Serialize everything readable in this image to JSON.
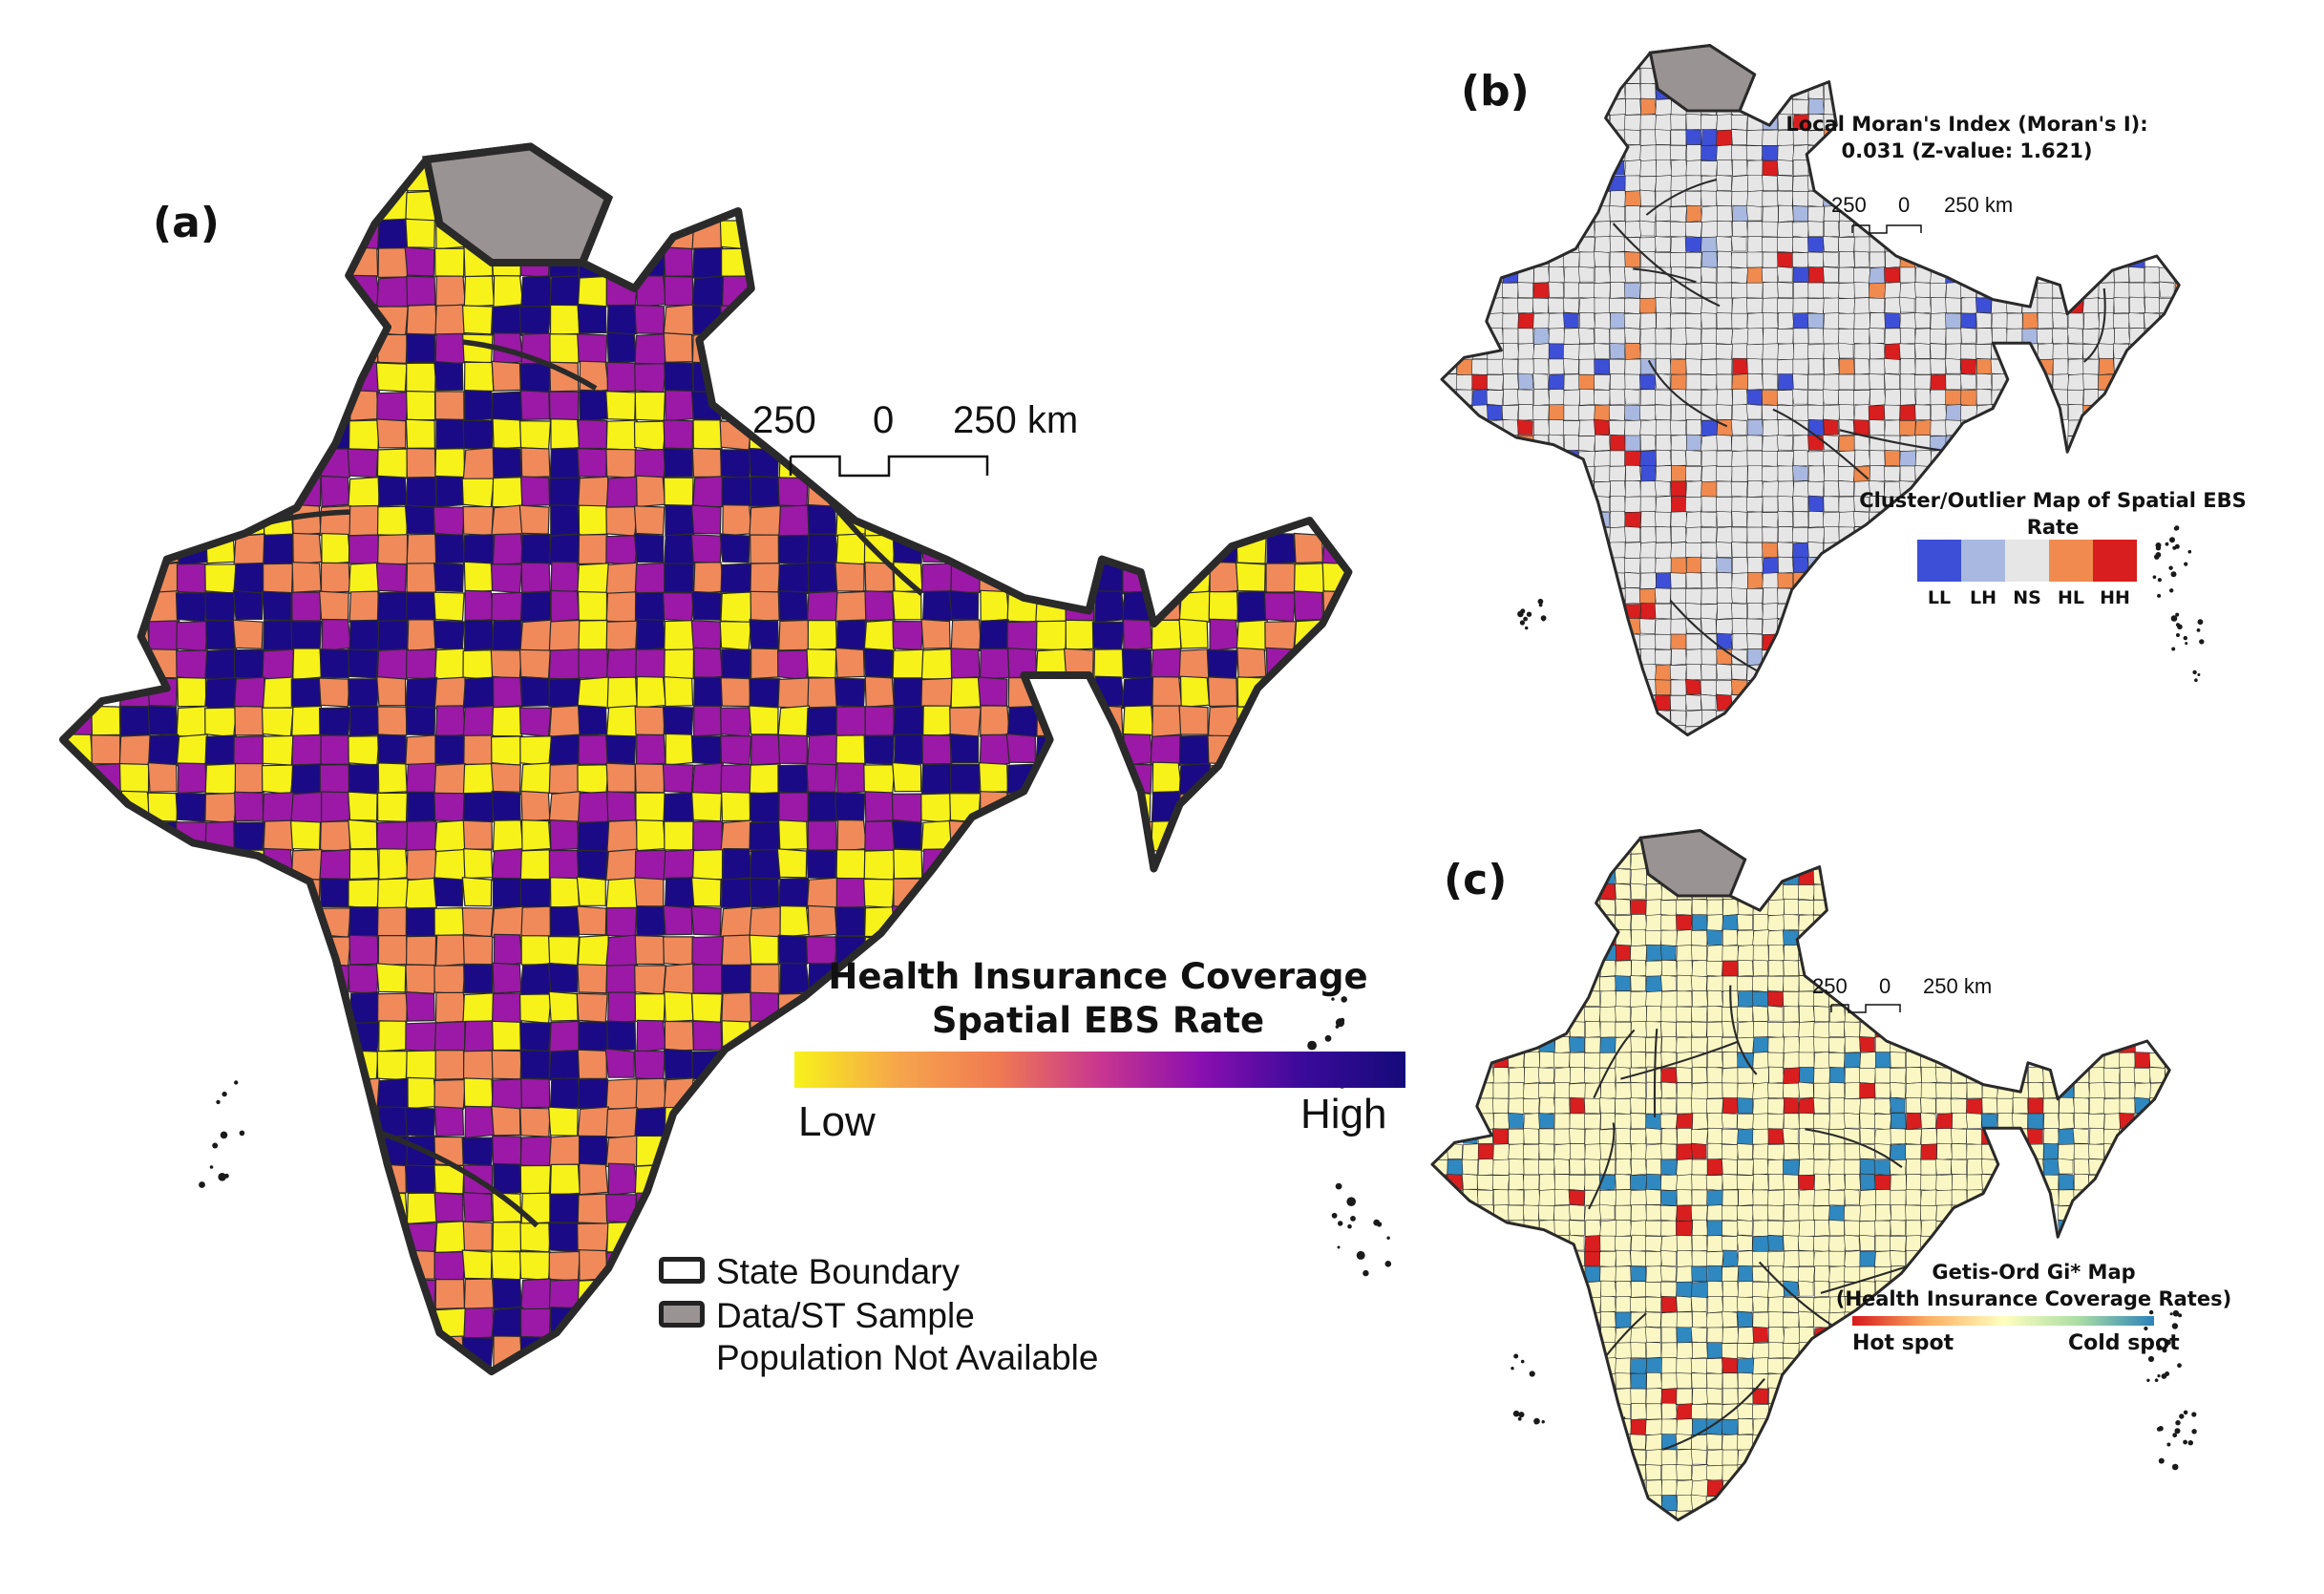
{
  "panels": {
    "a": {
      "label": "(a)",
      "scale": {
        "left": "250",
        "mid": "0",
        "right": "250 km"
      },
      "legend": {
        "title_line1": "Health Insurance Coverage",
        "title_line2": "Spatial EBS Rate",
        "low": "Low",
        "high": "High",
        "gradient_colors": [
          "#f7f21a",
          "#f6a64b",
          "#f07a52",
          "#c8368f",
          "#8a0fb0",
          "#3a0a9a",
          "#150a7a"
        ]
      },
      "boundary_legend": {
        "state_boundary": "State Boundary",
        "na_line1": "Data/ST Sample",
        "na_line2": "Population Not Available"
      },
      "class_colors": [
        "#f7f21a",
        "#f08a5a",
        "#9b19a6",
        "#1a0a86"
      ],
      "na_color": "#9a9393"
    },
    "b": {
      "label": "(b)",
      "title_line1": "Local Moran's Index (Moran's I):",
      "title_line2": "0.031 (Z-value: 1.621)",
      "scale": {
        "left": "250",
        "mid": "0",
        "right": "250 km"
      },
      "legend_title_line1": "Cluster/Outlier Map of Spatial EBS",
      "legend_title_line2": "Rate",
      "classes": [
        {
          "label": "LL",
          "color": "#3d4fd6"
        },
        {
          "label": "LH",
          "color": "#a8b8e0"
        },
        {
          "label": "NS",
          "color": "#e6e6e6"
        },
        {
          "label": "HL",
          "color": "#f08a4e"
        },
        {
          "label": "HH",
          "color": "#d81e1e"
        }
      ]
    },
    "c": {
      "label": "(c)",
      "scale": {
        "left": "250",
        "mid": "0",
        "right": "250 km"
      },
      "legend_title_line1": "Getis-Ord Gi* Map",
      "legend_title_line2": "(Health Insurance Coverage Rates)",
      "hot": "Hot spot",
      "cold": "Cold spot",
      "gradient_colors": [
        "#d7191c",
        "#fdae61",
        "#ffffbf",
        "#abdda4",
        "#2b83ba"
      ],
      "base_color": "#fbf7c4",
      "hot_color": "#d81e1e",
      "cold_color": "#2f88c0"
    }
  }
}
